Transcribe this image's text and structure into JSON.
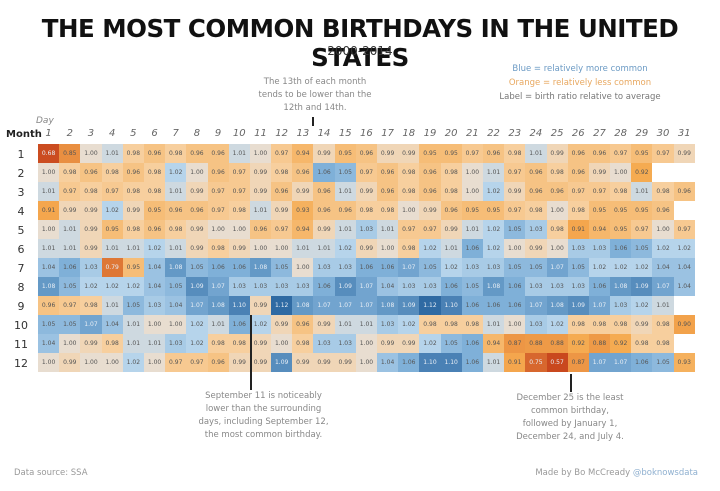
{
  "header": {
    "title": "THE MOST COMMON BIRTHDAYS IN THE UNITED STATES",
    "subtitle": "2000-2014"
  },
  "legend": {
    "blue": "Blue = relatively more common",
    "orange": "Orange = relatively less common",
    "label": "Label = birth ratio relative to average"
  },
  "annotations": {
    "thirteenth": [
      "The 13th of each month",
      "tends to be lower than the",
      "12th and 14th."
    ],
    "sept11": [
      "September 11 is noticeably",
      "lower than the surrounding",
      "days, including September 12,",
      "the most common birthday."
    ],
    "dec25": [
      "December 25 is the least",
      "common birthday,",
      "followed by January 1,",
      "December 24, and July 4."
    ]
  },
  "axes": {
    "day_label": "Day",
    "month_label": "Month"
  },
  "footer": {
    "source": "Data source: SSA",
    "credit_prefix": "Made by Bo McCready ",
    "credit_handle": "@boknowsdata"
  },
  "colors": {
    "most_blue": "#2f6aa3",
    "blue": "#7fb0d8",
    "light_blue": "#b9d6ec",
    "neutral": "#e8ddd0",
    "light_orange": "#f7cf9e",
    "orange": "#f5a94e",
    "dark_orange": "#c9481e"
  },
  "chart_data": {
    "type": "heatmap",
    "title": "THE MOST COMMON BIRTHDAYS IN THE UNITED STATES",
    "subtitle": "2000-2014",
    "xlabel": "Day",
    "ylabel": "Month",
    "x": [
      1,
      2,
      3,
      4,
      5,
      6,
      7,
      8,
      9,
      10,
      11,
      12,
      13,
      14,
      15,
      16,
      17,
      18,
      19,
      20,
      21,
      22,
      23,
      24,
      25,
      26,
      27,
      28,
      29,
      30,
      31
    ],
    "y": [
      1,
      2,
      3,
      4,
      5,
      6,
      7,
      8,
      9,
      10,
      11,
      12
    ],
    "values": [
      [
        0.68,
        0.85,
        1.0,
        1.01,
        0.98,
        0.96,
        0.98,
        0.96,
        0.96,
        1.01,
        1.0,
        0.97,
        0.94,
        0.99,
        0.95,
        0.96,
        0.99,
        0.99,
        0.95,
        0.95,
        0.97,
        0.96,
        0.98,
        1.01,
        0.99,
        0.96,
        0.96,
        0.97,
        0.95,
        0.97,
        0.99
      ],
      [
        1.0,
        0.98,
        0.96,
        0.98,
        0.96,
        0.98,
        1.02,
        1.0,
        0.96,
        0.97,
        0.99,
        0.98,
        0.96,
        1.06,
        1.05,
        0.97,
        0.96,
        0.98,
        0.96,
        0.98,
        1.0,
        1.01,
        0.97,
        0.96,
        0.98,
        0.96,
        0.99,
        1.0,
        0.92,
        null,
        null
      ],
      [
        1.01,
        0.97,
        0.98,
        0.97,
        0.98,
        0.98,
        1.01,
        0.99,
        0.97,
        0.97,
        0.99,
        0.96,
        0.99,
        0.96,
        1.01,
        0.99,
        0.96,
        0.98,
        0.96,
        0.98,
        1.0,
        1.02,
        0.99,
        0.96,
        0.96,
        0.97,
        0.97,
        0.98,
        1.01,
        0.98,
        0.96
      ],
      [
        0.91,
        0.99,
        0.99,
        1.02,
        0.99,
        0.95,
        0.96,
        0.96,
        0.97,
        0.98,
        1.01,
        0.99,
        0.93,
        0.96,
        0.96,
        0.98,
        0.98,
        1.0,
        0.99,
        0.96,
        0.95,
        0.95,
        0.97,
        0.98,
        1.0,
        0.98,
        0.95,
        0.95,
        0.95,
        0.96,
        null
      ],
      [
        1.0,
        1.01,
        0.99,
        0.95,
        0.98,
        0.96,
        0.98,
        0.99,
        1.0,
        1.0,
        0.96,
        0.97,
        0.94,
        0.99,
        1.01,
        1.03,
        1.01,
        0.97,
        0.97,
        0.99,
        1.01,
        1.02,
        1.05,
        1.03,
        0.98,
        0.91,
        0.94,
        0.95,
        0.97,
        1.0,
        0.97
      ],
      [
        1.01,
        1.01,
        0.99,
        1.01,
        1.01,
        1.02,
        1.01,
        0.99,
        0.98,
        0.99,
        1.0,
        1.0,
        1.01,
        1.01,
        1.02,
        0.99,
        1.0,
        0.98,
        1.02,
        1.01,
        1.06,
        1.02,
        1.0,
        0.99,
        1.0,
        1.03,
        1.03,
        1.06,
        1.05,
        1.02,
        1.02
      ],
      [
        1.04,
        1.06,
        1.03,
        0.79,
        0.95,
        1.04,
        1.08,
        1.05,
        1.06,
        1.06,
        1.08,
        1.05,
        1.0,
        1.03,
        1.03,
        1.06,
        1.06,
        1.07,
        1.05,
        1.02,
        1.03,
        1.03,
        1.05,
        1.05,
        1.07,
        1.05,
        1.02,
        1.02,
        1.02,
        1.04,
        1.04
      ],
      [
        1.08,
        1.05,
        1.02,
        1.02,
        1.02,
        1.04,
        1.05,
        1.09,
        1.07,
        1.03,
        1.03,
        1.03,
        1.03,
        1.06,
        1.09,
        1.07,
        1.04,
        1.03,
        1.03,
        1.06,
        1.05,
        1.08,
        1.06,
        1.03,
        1.03,
        1.03,
        1.06,
        1.08,
        1.09,
        1.07,
        1.04
      ],
      [
        0.96,
        0.97,
        0.98,
        1.01,
        1.05,
        1.03,
        1.04,
        1.07,
        1.08,
        1.1,
        0.99,
        1.12,
        1.08,
        1.07,
        1.07,
        1.07,
        1.08,
        1.09,
        1.12,
        1.1,
        1.06,
        1.06,
        1.06,
        1.07,
        1.08,
        1.09,
        1.07,
        1.03,
        1.02,
        1.01,
        null
      ],
      [
        1.05,
        1.05,
        1.07,
        1.04,
        1.01,
        1.0,
        1.0,
        1.02,
        1.01,
        1.06,
        1.02,
        0.99,
        0.96,
        0.99,
        1.01,
        1.01,
        1.03,
        1.02,
        0.98,
        0.98,
        0.98,
        1.01,
        1.0,
        1.03,
        1.02,
        0.98,
        0.98,
        0.98,
        0.99,
        0.98,
        0.9
      ],
      [
        1.04,
        1.0,
        0.99,
        0.98,
        1.01,
        1.01,
        1.03,
        1.02,
        0.98,
        0.98,
        0.99,
        1.0,
        0.98,
        1.03,
        1.03,
        1.0,
        0.99,
        0.99,
        1.02,
        1.05,
        1.06,
        0.94,
        0.87,
        0.88,
        0.88,
        0.92,
        0.88,
        0.92,
        0.98,
        0.98,
        null
      ],
      [
        1.0,
        0.99,
        1.0,
        1.0,
        1.02,
        1.0,
        0.97,
        0.97,
        0.96,
        0.99,
        0.99,
        1.09,
        0.99,
        0.99,
        0.99,
        1.0,
        1.04,
        1.06,
        1.1,
        1.1,
        1.06,
        1.01,
        0.91,
        0.75,
        0.57,
        0.87,
        1.07,
        1.07,
        1.06,
        1.05,
        0.93
      ]
    ],
    "color_scale": {
      "low": "#c9481e",
      "mid": "#e8ddd0",
      "high": "#2f6aa3"
    },
    "legend": [
      "Blue = relatively more common",
      "Orange = relatively less common",
      "Label = birth ratio relative to average"
    ]
  }
}
